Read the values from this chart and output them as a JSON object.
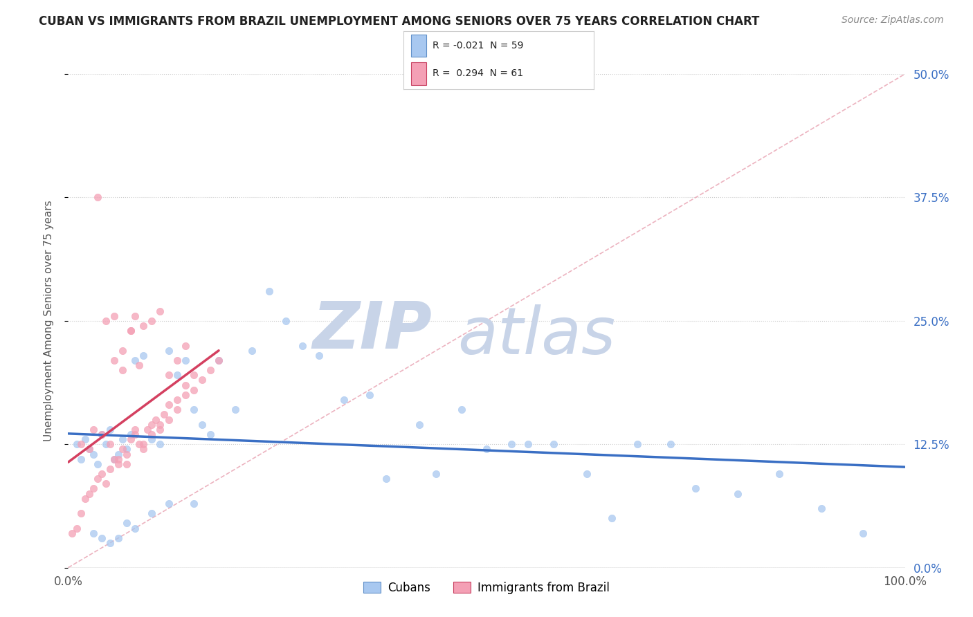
{
  "title": "CUBAN VS IMMIGRANTS FROM BRAZIL UNEMPLOYMENT AMONG SENIORS OVER 75 YEARS CORRELATION CHART",
  "source": "Source: ZipAtlas.com",
  "ylabel": "Unemployment Among Seniors over 75 years",
  "yticks_labels": [
    "0.0%",
    "12.5%",
    "25.0%",
    "37.5%",
    "50.0%"
  ],
  "ytick_vals": [
    0.0,
    12.5,
    25.0,
    37.5,
    50.0
  ],
  "xlim": [
    0,
    100
  ],
  "ylim": [
    0,
    50
  ],
  "legend_cubans": "Cubans",
  "legend_brazil": "Immigrants from Brazil",
  "R_cubans": -0.021,
  "N_cubans": 59,
  "R_brazil": 0.294,
  "N_brazil": 61,
  "color_cubans": "#A8C8F0",
  "color_brazil": "#F4A0B5",
  "trendline_cubans_color": "#3A6FC4",
  "trendline_brazil_color": "#D44060",
  "diag_color": "#E8A0B0",
  "watermark_zip_color": "#C8D4E8",
  "watermark_atlas_color": "#C8D4E8",
  "background_plot": "#FFFFFF",
  "background_fig": "#FFFFFF",
  "title_fontsize": 12,
  "source_fontsize": 10,
  "ytick_color": "#3A6FC4",
  "xtick_color": "#555555",
  "ylabel_color": "#555555",
  "cubans_x": [
    1.0,
    1.5,
    2.0,
    2.5,
    3.0,
    3.5,
    4.0,
    4.5,
    5.0,
    5.5,
    6.0,
    6.5,
    7.0,
    7.5,
    8.0,
    9.0,
    10.0,
    11.0,
    12.0,
    13.0,
    14.0,
    15.0,
    16.0,
    17.0,
    18.0,
    20.0,
    22.0,
    24.0,
    26.0,
    28.0,
    30.0,
    33.0,
    36.0,
    38.0,
    42.0,
    44.0,
    47.0,
    50.0,
    53.0,
    55.0,
    58.0,
    62.0,
    65.0,
    68.0,
    72.0,
    75.0,
    80.0,
    85.0,
    90.0,
    95.0,
    3.0,
    4.0,
    5.0,
    6.0,
    7.0,
    8.0,
    10.0,
    12.0,
    15.0
  ],
  "cubans_y": [
    12.5,
    11.0,
    13.0,
    12.0,
    11.5,
    10.5,
    13.5,
    12.5,
    14.0,
    11.0,
    11.5,
    13.0,
    12.0,
    13.5,
    21.0,
    21.5,
    13.0,
    12.5,
    22.0,
    19.5,
    21.0,
    16.0,
    14.5,
    13.5,
    21.0,
    16.0,
    22.0,
    28.0,
    25.0,
    22.5,
    21.5,
    17.0,
    17.5,
    9.0,
    14.5,
    9.5,
    16.0,
    12.0,
    12.5,
    12.5,
    12.5,
    9.5,
    5.0,
    12.5,
    12.5,
    8.0,
    7.5,
    9.5,
    6.0,
    3.5,
    3.5,
    3.0,
    2.5,
    3.0,
    4.5,
    4.0,
    5.5,
    6.5,
    6.5
  ],
  "brazil_x": [
    0.5,
    1.0,
    1.5,
    2.0,
    2.5,
    3.0,
    3.5,
    4.0,
    4.5,
    5.0,
    5.5,
    6.0,
    6.5,
    7.0,
    7.5,
    8.0,
    8.5,
    9.0,
    9.5,
    10.0,
    10.5,
    11.0,
    11.5,
    12.0,
    13.0,
    14.0,
    15.0,
    16.0,
    17.0,
    18.0,
    1.5,
    2.5,
    3.0,
    4.0,
    5.0,
    6.0,
    7.0,
    8.0,
    9.0,
    10.0,
    11.0,
    12.0,
    13.0,
    14.0,
    15.0,
    5.5,
    6.5,
    7.5,
    8.5,
    3.5,
    4.5,
    5.5,
    6.5,
    7.5,
    8.0,
    9.0,
    10.0,
    11.0,
    12.0,
    13.0,
    14.0
  ],
  "brazil_y": [
    3.5,
    4.0,
    5.5,
    7.0,
    7.5,
    8.0,
    9.0,
    9.5,
    8.5,
    10.0,
    11.0,
    10.5,
    12.0,
    11.5,
    13.0,
    13.5,
    12.5,
    12.0,
    14.0,
    14.5,
    15.0,
    14.0,
    15.5,
    16.5,
    17.0,
    18.5,
    19.5,
    19.0,
    20.0,
    21.0,
    12.5,
    12.0,
    14.0,
    13.5,
    12.5,
    11.0,
    10.5,
    14.0,
    12.5,
    13.5,
    14.5,
    15.0,
    16.0,
    17.5,
    18.0,
    21.0,
    22.0,
    24.0,
    20.5,
    37.5,
    25.0,
    25.5,
    20.0,
    24.0,
    25.5,
    24.5,
    25.0,
    26.0,
    19.5,
    21.0,
    22.5
  ]
}
